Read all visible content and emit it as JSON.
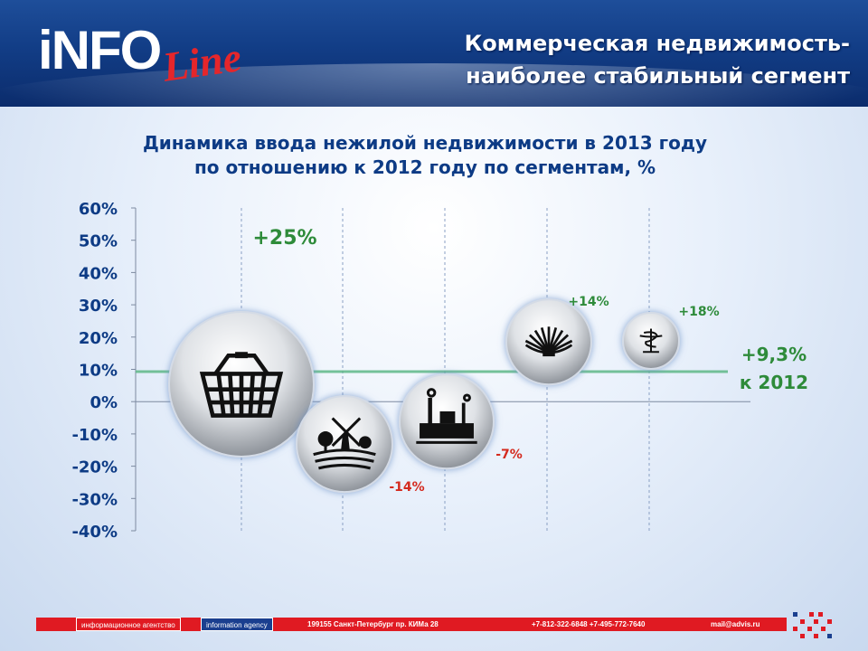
{
  "header": {
    "logo_main": "iNFO",
    "logo_script": "Line",
    "title_line1": "Коммерческая недвижимость-",
    "title_line2": "наиболее стабильный сегмент"
  },
  "chart_data": {
    "type": "bubble",
    "title_line1": "Динамика ввода нежилой недвижимости в 2013 году",
    "title_line2": "по отношению к 2012 году по сегментам, %",
    "ylim": [
      -40,
      60
    ],
    "yticks": [
      "60%",
      "50%",
      "40%",
      "30%",
      "20%",
      "10%",
      "0%",
      "-10%",
      "-20%",
      "-30%",
      "-40%"
    ],
    "grid": "dashed-vertical",
    "points": [
      {
        "icon": "shopping-basket-icon",
        "value": 25,
        "label": "+25%",
        "color": "#2e8b3a"
      },
      {
        "icon": "farm-windmill-icon",
        "value": -14,
        "label": "-14%",
        "color": "#d42a1e"
      },
      {
        "icon": "factory-icon",
        "value": -7,
        "label": "-7%",
        "color": "#d42a1e"
      },
      {
        "icon": "open-book-icon",
        "value": 14,
        "label": "+14%",
        "color": "#2e8b3a"
      },
      {
        "icon": "medical-caduceus-icon",
        "value": 18,
        "label": "+18%",
        "color": "#2e8b3a"
      }
    ],
    "reference": {
      "value": 9.3,
      "label_line1": "+9,3%",
      "label_line2": "к 2012",
      "color": "#5fb888"
    }
  },
  "footer": {
    "agency_ru": "информационное агентство",
    "agency_en": "information agency",
    "address": "199155 Санкт-Петербург пр. КИМа 28",
    "phones": "+7-812-322-6848 +7-495-772-7640",
    "email": "mail@advis.ru"
  }
}
